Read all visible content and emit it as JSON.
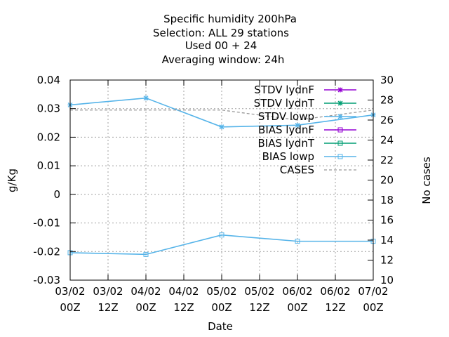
{
  "title_lines": [
    "Specific humidity 200hPa",
    "Selection: ALL     29 stations",
    "Used  00 + 24",
    "Averaging window: 24h"
  ],
  "chart_data": {
    "type": "line",
    "title": "Specific humidity 200hPa",
    "xlabel": "Date",
    "ylabel": "g/Kg",
    "y2label": "No cases",
    "ylim": [
      -0.03,
      0.04
    ],
    "y2lim": [
      10,
      30
    ],
    "grid": true,
    "legend_position": "top-right",
    "x_categories": [
      [
        "03/02",
        "00Z"
      ],
      [
        "03/02",
        "12Z"
      ],
      [
        "04/02",
        "00Z"
      ],
      [
        "04/02",
        "12Z"
      ],
      [
        "05/02",
        "00Z"
      ],
      [
        "05/02",
        "12Z"
      ],
      [
        "06/02",
        "00Z"
      ],
      [
        "06/02",
        "12Z"
      ],
      [
        "07/02",
        "00Z"
      ]
    ],
    "y_ticks": [
      "0.04",
      "0.03",
      "0.02",
      "0.01",
      "0",
      "-0.01",
      "-0.02",
      "-0.03"
    ],
    "y_tick_values": [
      0.04,
      0.03,
      0.02,
      0.01,
      0,
      -0.01,
      -0.02,
      -0.03
    ],
    "y2_ticks": [
      "30",
      "28",
      "26",
      "24",
      "22",
      "20",
      "18",
      "16",
      "14",
      "12",
      "10"
    ],
    "y2_tick_values": [
      30,
      28,
      26,
      24,
      22,
      20,
      18,
      16,
      14,
      12,
      10
    ],
    "series": [
      {
        "name": "STDV lydnF",
        "color": "#9400d3",
        "marker": "star",
        "dash": false,
        "axis": "y",
        "x": [],
        "values": []
      },
      {
        "name": "STDV lydnT",
        "color": "#009e73",
        "marker": "star",
        "dash": false,
        "axis": "y",
        "x": [],
        "values": []
      },
      {
        "name": "STDV lowp",
        "color": "#56b4e9",
        "marker": "star",
        "dash": false,
        "axis": "y",
        "x": [
          0,
          2,
          4,
          6,
          8
        ],
        "values": [
          0.0313,
          0.0337,
          0.0236,
          0.0242,
          0.0278
        ]
      },
      {
        "name": "BIAS lydnF",
        "color": "#9400d3",
        "marker": "square",
        "dash": false,
        "axis": "y",
        "x": [],
        "values": []
      },
      {
        "name": "BIAS lydnT",
        "color": "#009e73",
        "marker": "square",
        "dash": false,
        "axis": "y",
        "x": [],
        "values": []
      },
      {
        "name": "BIAS lowp",
        "color": "#56b4e9",
        "marker": "square",
        "dash": false,
        "axis": "y",
        "x": [
          0,
          2,
          4,
          6,
          8
        ],
        "values": [
          -0.0204,
          -0.021,
          -0.0142,
          -0.0164,
          -0.0164
        ]
      },
      {
        "name": "CASES",
        "color": "#999999",
        "marker": "none",
        "dash": true,
        "axis": "y2",
        "x": [
          0,
          2,
          4,
          6,
          8
        ],
        "values": [
          27,
          27,
          27,
          26,
          27
        ]
      }
    ]
  }
}
